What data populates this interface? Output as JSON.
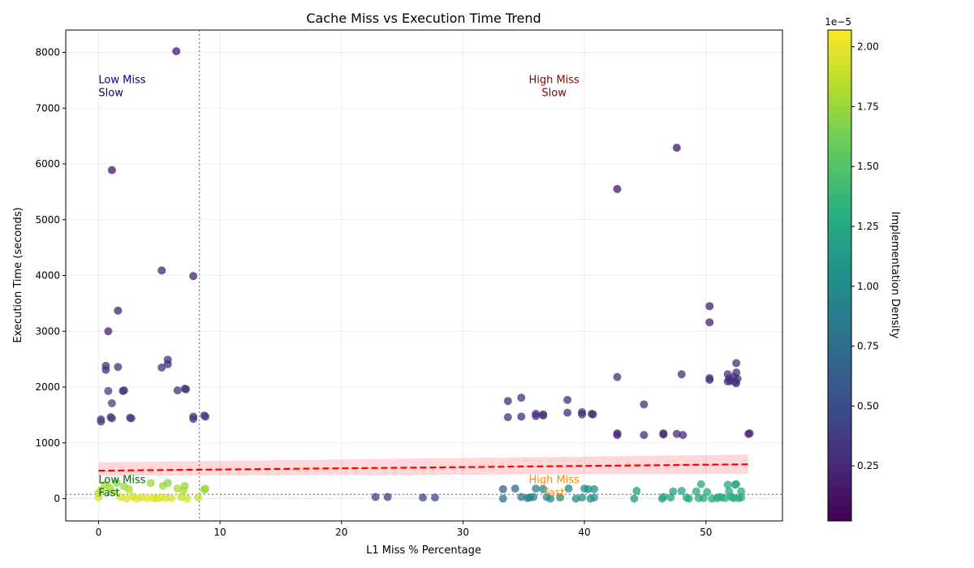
{
  "chart_data": {
    "type": "scatter",
    "title": "Cache Miss vs Execution Time Trend",
    "xlabel": "L1 Miss % Percentage",
    "ylabel": "Execution Time (seconds)",
    "xlim": [
      -2.7,
      56.3
    ],
    "ylim": [
      -400,
      8400
    ],
    "x_ticks": [
      0,
      10,
      20,
      30,
      40,
      50
    ],
    "y_ticks": [
      0,
      1000,
      2000,
      3000,
      4000,
      5000,
      6000,
      7000,
      8000
    ],
    "grid": true,
    "colormap": "viridis",
    "colorbar": {
      "label": "Implementation Density",
      "exponent_label": "1e−5",
      "min": 0.02,
      "max": 2.07,
      "ticks": [
        0.25,
        0.5,
        0.75,
        1.0,
        1.25,
        1.5,
        1.75,
        2.0
      ],
      "tick_labels": [
        "0.25",
        "0.50",
        "0.75",
        "1.00",
        "1.25",
        "1.50",
        "1.75",
        "2.00"
      ]
    },
    "reference_lines": {
      "vertical_x": 8.3,
      "horizontal_y": 75,
      "style": "dotted",
      "color": "#888888"
    },
    "trend_line": {
      "x": [
        0,
        53.5
      ],
      "y": [
        500,
        615
      ],
      "band_lower": [
        410,
        445
      ],
      "band_upper": [
        650,
        790
      ],
      "color": "#ff0000",
      "style": "dashed"
    },
    "quadrant_labels": [
      {
        "lines": [
          "Low Miss",
          "Slow"
        ],
        "x": 0,
        "y": 7450,
        "color": "#00008b",
        "align": "start"
      },
      {
        "lines": [
          "High Miss",
          "Slow"
        ],
        "x": 37.5,
        "y": 7450,
        "color": "#8b0000",
        "align": "middle"
      },
      {
        "lines": [
          "Low Miss",
          "Fast"
        ],
        "x": 0,
        "y": 280,
        "color": "#006400",
        "align": "start"
      },
      {
        "lines": [
          "High Miss",
          "Fast"
        ],
        "x": 37.5,
        "y": 280,
        "color": "#ff8c00",
        "align": "middle"
      }
    ],
    "points": [
      [
        6.4,
        8020,
        0.15
      ],
      [
        1.1,
        5890,
        0.15
      ],
      [
        47.6,
        6290,
        0.15
      ],
      [
        42.7,
        5550,
        0.15
      ],
      [
        5.2,
        4090,
        0.2
      ],
      [
        7.8,
        3990,
        0.2
      ],
      [
        1.6,
        3370,
        0.2
      ],
      [
        0.8,
        3000,
        0.2
      ],
      [
        50.3,
        3450,
        0.2
      ],
      [
        50.3,
        3160,
        0.2
      ],
      [
        5.7,
        2490,
        0.3
      ],
      [
        5.7,
        2410,
        0.3
      ],
      [
        5.2,
        2350,
        0.3
      ],
      [
        1.6,
        2360,
        0.3
      ],
      [
        0.6,
        2380,
        0.3
      ],
      [
        0.6,
        2310,
        0.3
      ],
      [
        0.8,
        1930,
        0.4
      ],
      [
        2.1,
        1940,
        0.3
      ],
      [
        2.0,
        1930,
        0.3
      ],
      [
        6.5,
        1940,
        0.3
      ],
      [
        7.1,
        1970,
        0.3
      ],
      [
        7.2,
        1960,
        0.3
      ],
      [
        1.1,
        1710,
        0.4
      ],
      [
        0.2,
        1420,
        0.4
      ],
      [
        0.2,
        1380,
        0.4
      ],
      [
        1.0,
        1460,
        0.35
      ],
      [
        1.1,
        1440,
        0.35
      ],
      [
        2.6,
        1450,
        0.35
      ],
      [
        2.7,
        1440,
        0.35
      ],
      [
        7.8,
        1470,
        0.35
      ],
      [
        7.8,
        1430,
        0.35
      ],
      [
        8.7,
        1490,
        0.35
      ],
      [
        8.8,
        1470,
        0.35
      ],
      [
        42.7,
        2180,
        0.3
      ],
      [
        48.0,
        2230,
        0.3
      ],
      [
        50.3,
        2160,
        0.3
      ],
      [
        50.3,
        2130,
        0.3
      ],
      [
        52.5,
        2430,
        0.3
      ],
      [
        52.5,
        2260,
        0.3
      ],
      [
        51.8,
        2230,
        0.3
      ],
      [
        51.9,
        2150,
        0.3
      ],
      [
        52.0,
        2110,
        0.3
      ],
      [
        52.3,
        2180,
        0.3
      ],
      [
        52.4,
        2090,
        0.3
      ],
      [
        52.5,
        2070,
        0.3
      ],
      [
        52.6,
        2150,
        0.3
      ],
      [
        51.8,
        2100,
        0.3
      ],
      [
        33.7,
        1750,
        0.3
      ],
      [
        34.8,
        1810,
        0.3
      ],
      [
        38.6,
        1770,
        0.3
      ],
      [
        44.9,
        1690,
        0.3
      ],
      [
        33.7,
        1460,
        0.3
      ],
      [
        34.8,
        1470,
        0.3
      ],
      [
        36.0,
        1520,
        0.3
      ],
      [
        36.0,
        1480,
        0.3
      ],
      [
        36.6,
        1510,
        0.3
      ],
      [
        36.6,
        1490,
        0.3
      ],
      [
        38.6,
        1540,
        0.3
      ],
      [
        39.8,
        1550,
        0.3
      ],
      [
        39.8,
        1510,
        0.3
      ],
      [
        40.6,
        1520,
        0.3
      ],
      [
        40.7,
        1510,
        0.3
      ],
      [
        42.7,
        1170,
        0.25
      ],
      [
        42.7,
        1140,
        0.25
      ],
      [
        44.9,
        1140,
        0.25
      ],
      [
        46.5,
        1170,
        0.25
      ],
      [
        46.5,
        1150,
        0.25
      ],
      [
        47.6,
        1160,
        0.25
      ],
      [
        48.1,
        1140,
        0.25
      ],
      [
        53.6,
        1170,
        0.25
      ],
      [
        53.5,
        1160,
        0.25
      ],
      [
        0.0,
        20,
        1.95
      ],
      [
        0.0,
        100,
        1.85
      ],
      [
        0.2,
        150,
        1.8
      ],
      [
        0.5,
        250,
        1.8
      ],
      [
        0.9,
        200,
        1.75
      ],
      [
        1.2,
        120,
        1.85
      ],
      [
        1.5,
        280,
        1.7
      ],
      [
        1.8,
        30,
        1.95
      ],
      [
        2.1,
        220,
        1.75
      ],
      [
        2.3,
        0,
        1.97
      ],
      [
        2.5,
        170,
        1.8
      ],
      [
        2.8,
        40,
        1.95
      ],
      [
        3.1,
        0,
        1.97
      ],
      [
        3.5,
        20,
        1.97
      ],
      [
        4.0,
        10,
        1.97
      ],
      [
        4.3,
        280,
        1.75
      ],
      [
        4.5,
        10,
        1.97
      ],
      [
        4.8,
        0,
        1.97
      ],
      [
        5.1,
        20,
        1.97
      ],
      [
        5.3,
        230,
        1.75
      ],
      [
        5.7,
        280,
        1.7
      ],
      [
        5.5,
        10,
        1.97
      ],
      [
        6.0,
        10,
        1.97
      ],
      [
        6.5,
        180,
        1.8
      ],
      [
        6.8,
        30,
        1.9
      ],
      [
        7.0,
        150,
        1.8
      ],
      [
        7.1,
        230,
        1.75
      ],
      [
        7.3,
        0,
        1.92
      ],
      [
        8.2,
        20,
        1.9
      ],
      [
        8.7,
        160,
        1.75
      ],
      [
        8.8,
        180,
        1.75
      ],
      [
        22.8,
        30,
        0.4
      ],
      [
        23.8,
        30,
        0.4
      ],
      [
        26.7,
        20,
        0.45
      ],
      [
        27.7,
        20,
        0.45
      ],
      [
        33.3,
        170,
        0.7
      ],
      [
        33.3,
        0,
        0.8
      ],
      [
        34.3,
        180,
        0.75
      ],
      [
        34.8,
        30,
        0.85
      ],
      [
        35.3,
        10,
        0.9
      ],
      [
        35.5,
        20,
        0.9
      ],
      [
        35.8,
        30,
        0.9
      ],
      [
        36.0,
        180,
        0.9
      ],
      [
        36.6,
        170,
        0.95
      ],
      [
        36.9,
        30,
        0.95
      ],
      [
        37.2,
        0,
        0.95
      ],
      [
        38.0,
        20,
        1.0
      ],
      [
        38.7,
        180,
        1.0
      ],
      [
        39.3,
        0,
        1.0
      ],
      [
        39.8,
        20,
        1.05
      ],
      [
        40.0,
        180,
        1.05
      ],
      [
        40.3,
        170,
        1.05
      ],
      [
        40.5,
        0,
        1.05
      ],
      [
        40.8,
        20,
        1.05
      ],
      [
        40.8,
        170,
        1.05
      ],
      [
        44.1,
        0,
        1.1
      ],
      [
        44.3,
        140,
        1.15
      ],
      [
        46.5,
        30,
        1.2
      ],
      [
        46.4,
        0,
        1.2
      ],
      [
        47.1,
        20,
        1.2
      ],
      [
        47.3,
        130,
        1.2
      ],
      [
        48.0,
        140,
        1.2
      ],
      [
        48.4,
        20,
        1.25
      ],
      [
        48.6,
        0,
        1.25
      ],
      [
        49.2,
        130,
        1.25
      ],
      [
        49.6,
        260,
        1.25
      ],
      [
        49.4,
        10,
        1.25
      ],
      [
        49.8,
        10,
        1.25
      ],
      [
        50.1,
        120,
        1.3
      ],
      [
        50.5,
        0,
        1.25
      ],
      [
        50.9,
        10,
        1.25
      ],
      [
        51.1,
        30,
        1.3
      ],
      [
        51.3,
        20,
        1.25
      ],
      [
        51.6,
        10,
        1.3
      ],
      [
        51.8,
        250,
        1.25
      ],
      [
        51.9,
        130,
        1.25
      ],
      [
        52.1,
        30,
        1.25
      ],
      [
        52.3,
        10,
        1.25
      ],
      [
        52.4,
        250,
        1.25
      ],
      [
        52.5,
        260,
        1.25
      ],
      [
        52.7,
        10,
        1.25
      ],
      [
        52.9,
        130,
        1.25
      ],
      [
        52.9,
        20,
        1.25
      ]
    ]
  }
}
